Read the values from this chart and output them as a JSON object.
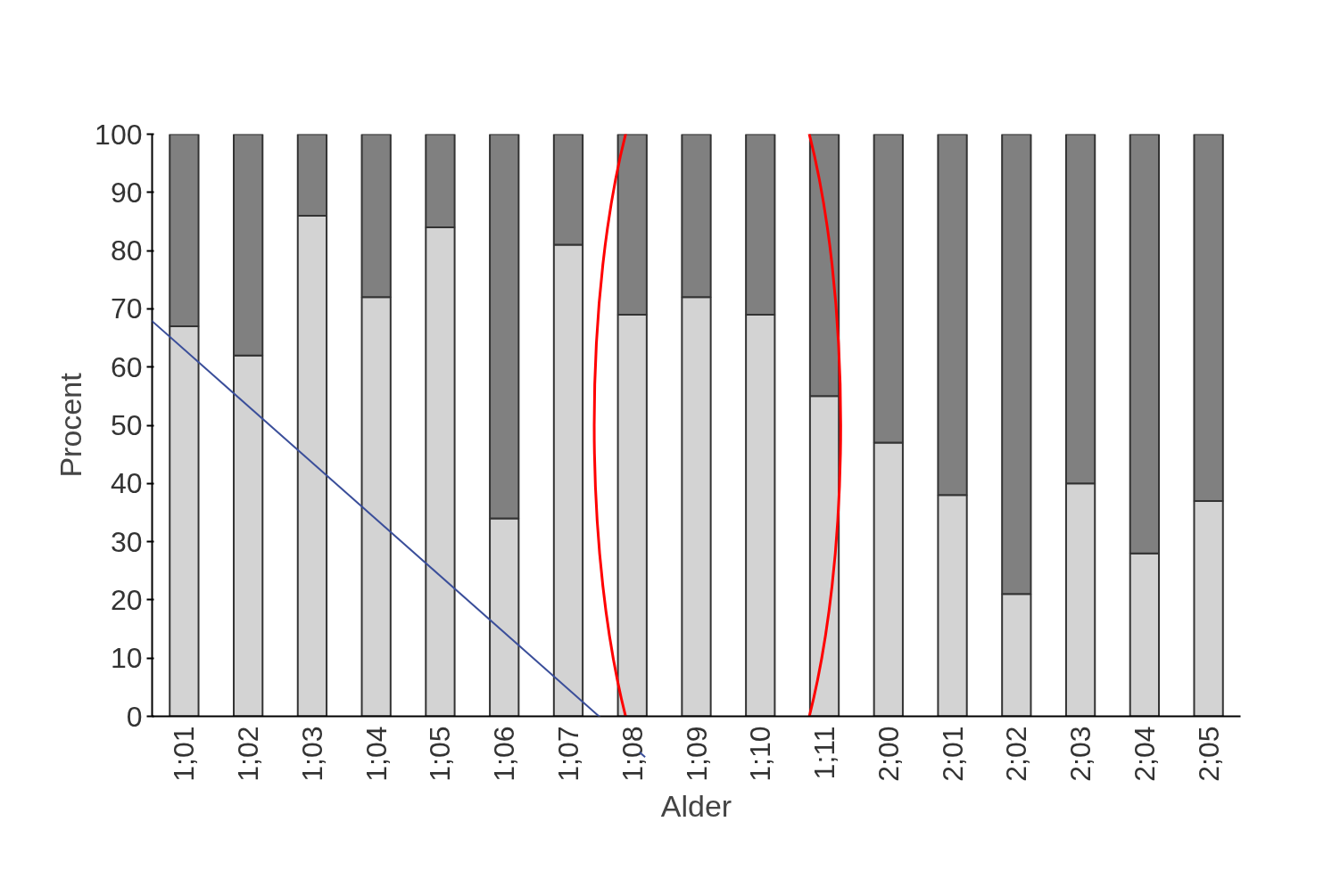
{
  "chart_data": {
    "type": "bar",
    "stacked": true,
    "xlabel": "Alder",
    "ylabel": "Procent",
    "categories": [
      "1;01",
      "1;02",
      "1;03",
      "1;04",
      "1;05",
      "1;06",
      "1;07",
      "1;08",
      "1;09",
      "1;10",
      "1;11",
      "2;00",
      "2;01",
      "2;02",
      "2;03",
      "2;04",
      "2;05"
    ],
    "series": [
      {
        "color": "#d3d3d3",
        "values": [
          67,
          62,
          86,
          72,
          84,
          34,
          81,
          69,
          72,
          69,
          55,
          47,
          38,
          21,
          40,
          28,
          37
        ]
      },
      {
        "color": "#808080",
        "values": [
          33,
          38,
          14,
          28,
          16,
          66,
          19,
          31,
          28,
          31,
          45,
          53,
          62,
          79,
          60,
          72,
          63
        ]
      }
    ],
    "ylim": [
      0,
      100
    ],
    "yticks": [
      0,
      10,
      20,
      30,
      40,
      50,
      60,
      70,
      80,
      90,
      100
    ],
    "grid": false
  }
}
